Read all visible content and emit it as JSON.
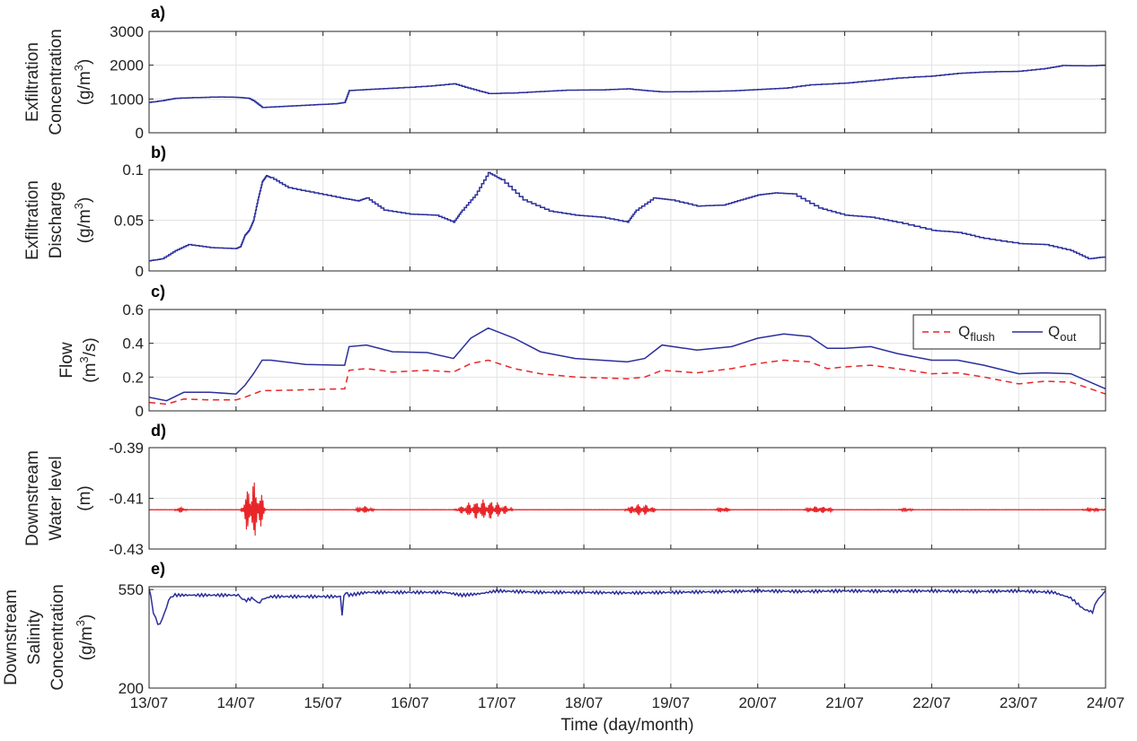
{
  "xlabel": "Time (day/month)",
  "x_tick_labels": [
    "13/07",
    "14/07",
    "15/07",
    "16/07",
    "17/07",
    "18/07",
    "19/07",
    "20/07",
    "21/07",
    "22/07",
    "23/07",
    "24/07"
  ],
  "xlim_days": [
    13,
    24
  ],
  "chart_data": [
    {
      "id": "a",
      "panel_label": "a)",
      "type": "line",
      "ylabel_lines": [
        "Exfiltration",
        "Concentration"
      ],
      "ylabel_unit_base": "(g/m",
      "ylabel_unit_sup": "3",
      "ylabel_unit_tail": ")",
      "ylim": [
        0,
        3000
      ],
      "yticks": [
        0,
        1000,
        2000,
        3000
      ],
      "ytick_labels": [
        "0",
        "1000",
        "2000",
        "3000"
      ],
      "grid": true,
      "series": [
        {
          "color": "#2b2f9b",
          "step": true,
          "x": [
            13.0,
            13.15,
            13.3,
            13.5,
            13.8,
            14.0,
            14.15,
            14.2,
            14.3,
            14.6,
            14.9,
            15.15,
            15.25,
            15.3,
            15.5,
            15.8,
            16.2,
            16.5,
            16.7,
            16.9,
            17.2,
            17.5,
            17.8,
            18.2,
            18.5,
            18.7,
            18.9,
            19.3,
            19.7,
            20.0,
            20.3,
            20.6,
            21.0,
            21.3,
            21.6,
            22.0,
            22.3,
            22.6,
            23.0,
            23.3,
            23.5,
            23.8,
            24.0
          ],
          "y": [
            900,
            950,
            1020,
            1040,
            1060,
            1050,
            1020,
            950,
            750,
            790,
            830,
            860,
            900,
            1250,
            1280,
            1320,
            1380,
            1450,
            1300,
            1160,
            1180,
            1220,
            1260,
            1270,
            1300,
            1250,
            1210,
            1220,
            1240,
            1280,
            1320,
            1420,
            1470,
            1540,
            1620,
            1680,
            1760,
            1800,
            1820,
            1900,
            1990,
            1980,
            2000
          ]
        }
      ]
    },
    {
      "id": "b",
      "panel_label": "b)",
      "type": "line",
      "ylabel_lines": [
        "Exfiltration",
        "Discharge"
      ],
      "ylabel_unit_base": "(g/m",
      "ylabel_unit_sup": "3",
      "ylabel_unit_tail": ")",
      "ylim": [
        0,
        0.1
      ],
      "yticks": [
        0,
        0.05,
        0.1
      ],
      "ytick_labels": [
        "0",
        "0.05",
        "0.1"
      ],
      "grid": true,
      "series": [
        {
          "color": "#2b2f9b",
          "step": true,
          "x": [
            13.0,
            13.15,
            13.3,
            13.45,
            13.7,
            14.0,
            14.05,
            14.1,
            14.15,
            14.2,
            14.25,
            14.3,
            14.35,
            14.4,
            14.6,
            14.9,
            15.2,
            15.4,
            15.5,
            15.7,
            16.0,
            16.3,
            16.5,
            16.6,
            16.75,
            16.9,
            17.05,
            17.3,
            17.6,
            17.9,
            18.2,
            18.5,
            18.6,
            18.8,
            19.0,
            19.3,
            19.6,
            19.8,
            20.0,
            20.2,
            20.4,
            20.7,
            21.0,
            21.3,
            21.6,
            22.0,
            22.3,
            22.6,
            23.0,
            23.3,
            23.6,
            23.8,
            24.0
          ],
          "y": [
            0.01,
            0.012,
            0.02,
            0.026,
            0.023,
            0.022,
            0.024,
            0.035,
            0.04,
            0.05,
            0.07,
            0.088,
            0.094,
            0.092,
            0.082,
            0.077,
            0.072,
            0.069,
            0.072,
            0.06,
            0.056,
            0.055,
            0.048,
            0.06,
            0.075,
            0.097,
            0.09,
            0.07,
            0.059,
            0.055,
            0.053,
            0.048,
            0.06,
            0.072,
            0.07,
            0.064,
            0.065,
            0.07,
            0.075,
            0.077,
            0.076,
            0.062,
            0.055,
            0.053,
            0.048,
            0.04,
            0.038,
            0.032,
            0.027,
            0.026,
            0.02,
            0.012,
            0.014
          ]
        }
      ]
    },
    {
      "id": "c",
      "panel_label": "c)",
      "type": "line",
      "ylabel_lines": [
        "Flow"
      ],
      "ylabel_unit_base": "(m",
      "ylabel_unit_sup": "3",
      "ylabel_unit_tail": "/s)",
      "ylim": [
        0,
        0.6
      ],
      "yticks": [
        0,
        0.2,
        0.4,
        0.6
      ],
      "ytick_labels": [
        "0",
        "0.2",
        "0.4",
        "0.6"
      ],
      "grid": true,
      "legend": {
        "placement": "top-right",
        "entries": [
          {
            "base": "Q",
            "sub": "flush",
            "color": "#e8262a",
            "dash": true
          },
          {
            "base": "Q",
            "sub": "out",
            "color": "#2b2f9b",
            "dash": false
          }
        ]
      },
      "series": [
        {
          "color": "#e8262a",
          "dash": true,
          "x": [
            13.0,
            13.2,
            13.4,
            13.7,
            14.0,
            14.1,
            14.2,
            14.3,
            14.4,
            14.8,
            15.2,
            15.25,
            15.3,
            15.5,
            15.8,
            16.2,
            16.5,
            16.7,
            16.9,
            17.2,
            17.5,
            17.9,
            18.2,
            18.5,
            18.7,
            18.9,
            19.3,
            19.7,
            20.0,
            20.3,
            20.6,
            20.8,
            21.0,
            21.3,
            21.6,
            22.0,
            22.3,
            22.6,
            23.0,
            23.3,
            23.6,
            24.0
          ],
          "y": [
            0.05,
            0.04,
            0.07,
            0.065,
            0.065,
            0.08,
            0.1,
            0.12,
            0.12,
            0.125,
            0.13,
            0.13,
            0.24,
            0.25,
            0.23,
            0.24,
            0.23,
            0.28,
            0.3,
            0.25,
            0.22,
            0.2,
            0.195,
            0.19,
            0.2,
            0.24,
            0.225,
            0.25,
            0.28,
            0.3,
            0.29,
            0.25,
            0.26,
            0.27,
            0.25,
            0.22,
            0.225,
            0.2,
            0.16,
            0.175,
            0.17,
            0.1
          ]
        },
        {
          "color": "#2b2f9b",
          "dash": false,
          "x": [
            13.0,
            13.2,
            13.4,
            13.7,
            14.0,
            14.1,
            14.2,
            14.3,
            14.4,
            14.8,
            15.2,
            15.25,
            15.3,
            15.5,
            15.8,
            16.2,
            16.5,
            16.7,
            16.9,
            17.2,
            17.5,
            17.9,
            18.2,
            18.5,
            18.7,
            18.9,
            19.3,
            19.7,
            20.0,
            20.3,
            20.6,
            20.8,
            21.0,
            21.3,
            21.6,
            22.0,
            22.3,
            22.6,
            23.0,
            23.3,
            23.6,
            24.0
          ],
          "y": [
            0.08,
            0.06,
            0.11,
            0.11,
            0.1,
            0.15,
            0.22,
            0.3,
            0.3,
            0.275,
            0.27,
            0.27,
            0.38,
            0.39,
            0.35,
            0.345,
            0.31,
            0.43,
            0.49,
            0.43,
            0.35,
            0.31,
            0.3,
            0.29,
            0.31,
            0.39,
            0.36,
            0.38,
            0.43,
            0.455,
            0.44,
            0.37,
            0.37,
            0.38,
            0.34,
            0.3,
            0.3,
            0.27,
            0.22,
            0.225,
            0.22,
            0.13
          ]
        }
      ]
    },
    {
      "id": "d",
      "panel_label": "d)",
      "type": "line",
      "ylabel_lines": [
        "Downstream",
        "Water level"
      ],
      "ylabel_unit_base": "(m)",
      "ylabel_unit_sup": "",
      "ylabel_unit_tail": "",
      "ylim": [
        -0.43,
        -0.39
      ],
      "yticks": [
        -0.43,
        -0.41,
        -0.39
      ],
      "ytick_labels": [
        "-0.43",
        "-0.41",
        "-0.39"
      ],
      "grid": true,
      "baseline": -0.4145,
      "series": [
        {
          "color": "#e8262a",
          "oscillating": true,
          "bursts": [
            {
              "x0": 13.28,
              "x1": 13.45,
              "amp": 0.0012
            },
            {
              "x0": 14.05,
              "x1": 14.35,
              "amp": 0.012
            },
            {
              "x0": 15.35,
              "x1": 15.6,
              "amp": 0.0015
            },
            {
              "x0": 16.5,
              "x1": 17.2,
              "amp": 0.004
            },
            {
              "x0": 18.45,
              "x1": 18.85,
              "amp": 0.0025
            },
            {
              "x0": 19.5,
              "x1": 19.7,
              "amp": 0.0012
            },
            {
              "x0": 20.5,
              "x1": 20.9,
              "amp": 0.0015
            },
            {
              "x0": 21.6,
              "x1": 21.8,
              "amp": 0.0008
            },
            {
              "x0": 23.7,
              "x1": 24.0,
              "amp": 0.0008
            }
          ]
        }
      ]
    },
    {
      "id": "e",
      "panel_label": "e)",
      "type": "line",
      "ylabel_lines": [
        "Downstream",
        "Salinity",
        "Concentration"
      ],
      "ylabel_unit_base": "(g/m",
      "ylabel_unit_sup": "3",
      "ylabel_unit_tail": ")",
      "ylim": [
        200,
        560
      ],
      "yticks": [
        200,
        550
      ],
      "ytick_labels": [
        "200",
        "550"
      ],
      "grid": true,
      "series": [
        {
          "color": "#2b2f9b",
          "x": [
            13.0,
            13.02,
            13.05,
            13.1,
            13.15,
            13.2,
            13.25,
            13.3,
            13.5,
            14.0,
            14.05,
            14.1,
            14.2,
            14.25,
            14.3,
            14.4,
            14.8,
            15.2,
            15.22,
            15.24,
            15.26,
            15.3,
            15.5,
            16.0,
            16.4,
            16.6,
            16.8,
            17.0,
            17.5,
            18.0,
            18.5,
            19.0,
            19.5,
            20.0,
            20.5,
            21.0,
            21.5,
            22.0,
            22.5,
            23.0,
            23.4,
            23.6,
            23.75,
            23.85,
            23.9,
            24.0
          ],
          "y": [
            550,
            530,
            470,
            425,
            440,
            490,
            525,
            530,
            530,
            530,
            525,
            510,
            520,
            500,
            515,
            525,
            525,
            525,
            460,
            525,
            540,
            530,
            540,
            540,
            540,
            530,
            535,
            545,
            540,
            540,
            538,
            540,
            542,
            545,
            543,
            545,
            544,
            545,
            543,
            545,
            540,
            520,
            480,
            470,
            510,
            545
          ]
        }
      ]
    }
  ]
}
